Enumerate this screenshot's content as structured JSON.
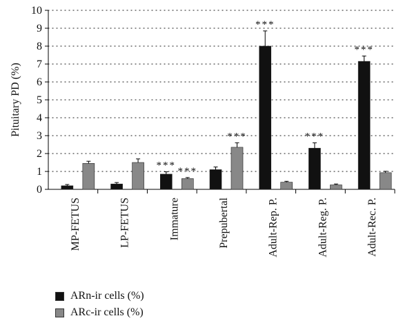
{
  "chart_data": {
    "type": "bar",
    "ylabel": "Pituitary PD (%)",
    "ylim": [
      0,
      10
    ],
    "yticks": [
      0,
      1,
      2,
      3,
      4,
      5,
      6,
      7,
      8,
      9,
      10
    ],
    "grid": "horizontal dotted",
    "categories": [
      "MP-FETUS",
      "LP-FETUS",
      "Immature",
      "Prepubertal",
      "Adult-Rep. P.",
      "Adult-Reg. P.",
      "Adult-Rec. P."
    ],
    "series": [
      {
        "name": "ARn-ir cells (%)",
        "color": "#111111",
        "values": [
          0.2,
          0.3,
          0.85,
          1.1,
          8.0,
          2.3,
          7.15
        ],
        "errors": [
          0.07,
          0.08,
          0.13,
          0.15,
          0.85,
          0.3,
          0.3
        ],
        "significance": [
          "",
          "",
          "***",
          "",
          "***",
          "***",
          "***"
        ]
      },
      {
        "name": "ARc-ir cells (%)",
        "color": "#888888",
        "values": [
          1.45,
          1.5,
          0.6,
          2.35,
          0.4,
          0.25,
          0.93
        ],
        "errors": [
          0.12,
          0.2,
          0.06,
          0.25,
          0.05,
          0.05,
          0.08
        ],
        "significance": [
          "",
          "",
          "***",
          "***",
          "",
          "",
          ""
        ]
      }
    ],
    "legend_position": "bottom-left"
  }
}
